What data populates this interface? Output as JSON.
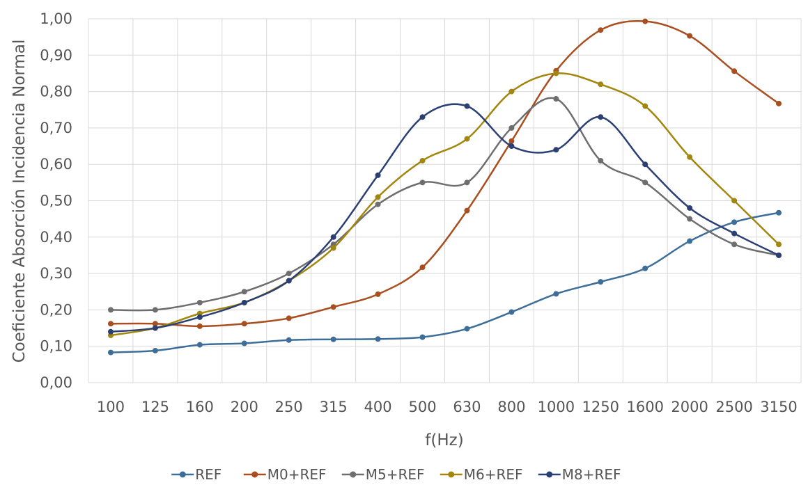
{
  "chart_data": {
    "type": "line",
    "title": "",
    "xlabel": "f(Hz)",
    "ylabel": "Coeficiente Absorción Incidencia Normal",
    "categories": [
      "100",
      "125",
      "160",
      "200",
      "250",
      "315",
      "400",
      "500",
      "630",
      "800",
      "1000",
      "1250",
      "1600",
      "2000",
      "2500",
      "3150"
    ],
    "ylim": [
      0,
      1
    ],
    "yticks": [
      "0,00",
      "0,10",
      "0,20",
      "0,30",
      "0,40",
      "0,50",
      "0,60",
      "0,70",
      "0,80",
      "0,90",
      "1,00"
    ],
    "grid": true,
    "legend_position": "bottom",
    "series": [
      {
        "name": "REF",
        "color": "#3d6e99",
        "values": [
          0.083,
          0.088,
          0.104,
          0.108,
          0.117,
          0.119,
          0.12,
          0.125,
          0.148,
          0.194,
          0.244,
          0.277,
          0.314,
          0.389,
          0.441,
          0.467
        ]
      },
      {
        "name": "M0+REF",
        "color": "#a84e1f",
        "values": [
          0.162,
          0.162,
          0.155,
          0.162,
          0.177,
          0.208,
          0.243,
          0.317,
          0.473,
          0.664,
          0.857,
          0.969,
          0.993,
          0.953,
          0.856,
          0.767
        ]
      },
      {
        "name": "M5+REF",
        "color": "#6e6e6e",
        "values": [
          0.2,
          0.2,
          0.22,
          0.25,
          0.3,
          0.38,
          0.49,
          0.55,
          0.55,
          0.7,
          0.78,
          0.61,
          0.55,
          0.45,
          0.38,
          0.35
        ]
      },
      {
        "name": "M6+REF",
        "color": "#a2860d",
        "values": [
          0.13,
          0.15,
          0.19,
          0.22,
          0.28,
          0.37,
          0.51,
          0.61,
          0.67,
          0.8,
          0.85,
          0.82,
          0.76,
          0.62,
          0.5,
          0.38
        ]
      },
      {
        "name": "M8+REF",
        "color": "#2a3f73",
        "values": [
          0.14,
          0.15,
          0.18,
          0.22,
          0.28,
          0.4,
          0.57,
          0.73,
          0.76,
          0.65,
          0.64,
          0.73,
          0.6,
          0.48,
          0.41,
          0.35
        ]
      }
    ]
  }
}
